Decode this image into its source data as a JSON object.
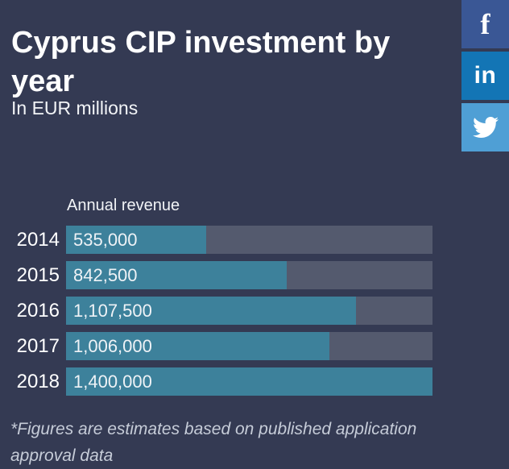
{
  "header": {
    "title": "Cyprus CIP investment by year",
    "subtitle": "In EUR millions"
  },
  "social": {
    "facebook": {
      "label": "f",
      "color": "#3a5795"
    },
    "linkedin": {
      "label": "in",
      "color": "#1375b5"
    },
    "twitter": {
      "color": "#4f9fd5"
    }
  },
  "chart_data": {
    "type": "bar",
    "orientation": "horizontal",
    "title": "Annual revenue",
    "categories": [
      "2014",
      "2015",
      "2016",
      "2017",
      "2018"
    ],
    "values": [
      535000,
      842500,
      1107500,
      1006000,
      1400000
    ],
    "value_labels": [
      "535,000",
      "842,500",
      "1,107,500",
      "1,006,000",
      "1,400,000"
    ],
    "xlim": [
      0,
      1400000
    ],
    "bar_color": "#3d819b",
    "track_color": "#545a6e",
    "grid": false,
    "legend": "none"
  },
  "footnote": "*Figures are estimates based on published application approval data",
  "colors": {
    "background": "#343a53",
    "title_text": "#ffffff",
    "footnote_text": "#c6ccd8"
  }
}
